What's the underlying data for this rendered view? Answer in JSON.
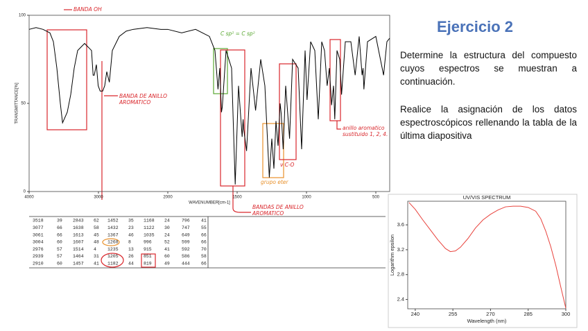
{
  "slide": {
    "title": "Ejercicio 2",
    "paragraphs": [
      "Determine la estructura del compuesto cuyos espectros se muestran a continuación.",
      "Realice la asignación de los datos espectroscópicos rellenando la tabla de la última diapositiva"
    ]
  },
  "chart_data": [
    {
      "type": "line",
      "xlabel": "WAVENUMBER[cm-1]",
      "ylabel": "TRANSMITTANCE[%]",
      "color": "#000000",
      "x": [
        4000,
        3900,
        3800,
        3700,
        3650,
        3600,
        3550,
        3518,
        3450,
        3400,
        3350,
        3300,
        3200,
        3150,
        3100,
        3077,
        3061,
        3030,
        3004,
        2976,
        2939,
        2910,
        2880,
        2843,
        2800,
        2700,
        2600,
        2500,
        2300,
        2100,
        2000,
        1900,
        1800,
        1700,
        1660,
        1638,
        1625,
        1613,
        1607,
        1580,
        1540,
        1514,
        1490,
        1464,
        1457,
        1452,
        1432,
        1400,
        1367,
        1330,
        1300,
        1268,
        1250,
        1235,
        1220,
        1205,
        1190,
        1182,
        1168,
        1150,
        1122,
        1100,
        1060,
        1035,
        1010,
        996,
        970,
        940,
        915,
        890,
        870,
        851,
        835,
        819,
        805,
        796,
        780,
        760,
        747,
        720,
        680,
        649,
        620,
        599,
        592,
        586,
        560,
        500,
        444,
        420,
        400
      ],
      "values": [
        92,
        93,
        92,
        90,
        85,
        70,
        50,
        39,
        45,
        55,
        70,
        80,
        84,
        82,
        80,
        66,
        66,
        72,
        60,
        57,
        57,
        60,
        68,
        62,
        80,
        88,
        91,
        92,
        93,
        92,
        92,
        90,
        92,
        88,
        80,
        58,
        70,
        45,
        48,
        80,
        70,
        4,
        60,
        31,
        41,
        35,
        23,
        70,
        46,
        75,
        60,
        8,
        30,
        13,
        40,
        26,
        50,
        44,
        24,
        60,
        30,
        75,
        70,
        24,
        80,
        52,
        85,
        80,
        41,
        85,
        80,
        60,
        70,
        49,
        60,
        41,
        80,
        75,
        55,
        85,
        85,
        66,
        88,
        66,
        70,
        58,
        85,
        88,
        66,
        85,
        87
      ],
      "xlim": [
        4000,
        400
      ],
      "xticks": [
        4000,
        3000,
        2000,
        1500,
        1000,
        500
      ],
      "ylim": [
        0,
        100
      ],
      "yticks": [
        0,
        50,
        100
      ],
      "annotations": [
        {
          "text": "BANDA OH",
          "color": "#d9262b"
        },
        {
          "text": "BANDA DE ANILLO AROMATICO",
          "color": "#d9262b"
        },
        {
          "text": "C sp² = C sp²",
          "color": "#5aa832"
        },
        {
          "text": "grupo eter",
          "color": "#e8902a"
        },
        {
          "text": "ν C-O",
          "color": "#d9262b"
        },
        {
          "text": "anillo aromatico sustituido 1, 2, 4.",
          "color": "#d9262b"
        },
        {
          "text": "BANDAS DE ANILLO AROMATICO",
          "color": "#d9262b"
        }
      ]
    },
    {
      "type": "line",
      "title": "UV/VIS SPECTRUM",
      "xlabel": "Wavelength (nm)",
      "ylabel": "Logarithm epsilon",
      "color": "#e8413b",
      "x": [
        237.5,
        240,
        243,
        246,
        249,
        252,
        254,
        256,
        258,
        261,
        264,
        267,
        270,
        273,
        276,
        279,
        282,
        285,
        288,
        290,
        292,
        294,
        296,
        298,
        300
      ],
      "values": [
        3.96,
        3.85,
        3.68,
        3.52,
        3.36,
        3.22,
        3.17,
        3.18,
        3.24,
        3.38,
        3.55,
        3.68,
        3.77,
        3.84,
        3.89,
        3.9,
        3.9,
        3.88,
        3.82,
        3.7,
        3.5,
        3.25,
        2.95,
        2.6,
        2.26
      ],
      "xlim": [
        237,
        300
      ],
      "xticks": [
        240,
        255,
        270,
        285,
        300
      ],
      "ylim": [
        2.25,
        3.98
      ],
      "yticks": [
        2.4,
        2.8,
        3.2,
        3.6
      ]
    }
  ],
  "peak_table": {
    "rows": [
      [
        3518,
        39,
        2843,
        62,
        1452,
        35,
        1168,
        24,
        796,
        41
      ],
      [
        3077,
        66,
        1638,
        58,
        1432,
        23,
        1122,
        30,
        747,
        55
      ],
      [
        3061,
        66,
        1613,
        45,
        1367,
        46,
        1035,
        24,
        649,
        66
      ],
      [
        3004,
        60,
        1607,
        48,
        1268,
        8,
        996,
        52,
        599,
        66
      ],
      [
        2976,
        57,
        1514,
        4,
        1235,
        13,
        915,
        41,
        592,
        70
      ],
      [
        2939,
        57,
        1464,
        31,
        1205,
        26,
        851,
        60,
        586,
        58
      ],
      [
        2910,
        60,
        1457,
        41,
        1182,
        44,
        819,
        49,
        444,
        66
      ]
    ]
  }
}
